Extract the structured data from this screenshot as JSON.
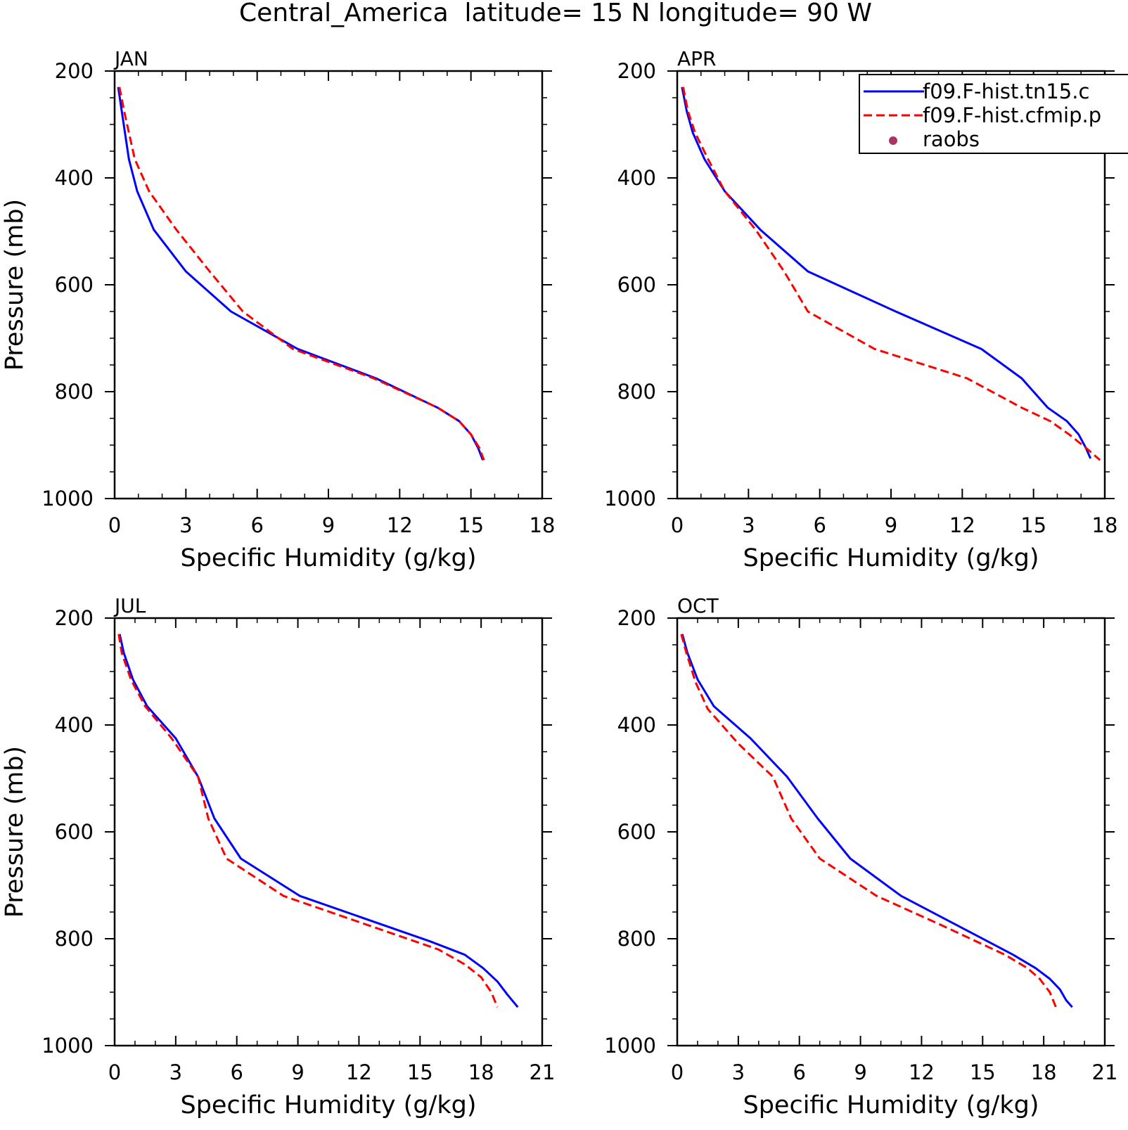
{
  "title": "Central_America  latitude= 15 N longitude= 90 W",
  "colors": {
    "model1": "#0000ff",
    "model2": "#ff0000",
    "raobs": "#aa3366",
    "frame": "#000000"
  },
  "legend": {
    "placement": "top-right of APR panel (clipped at image edge)",
    "entries": [
      {
        "label": "f09.F-hist.tn15.c",
        "style": "solid",
        "color": "#0000ff"
      },
      {
        "label": "f09.F-hist.cfmip.p",
        "style": "dashed",
        "color": "#ff0000"
      },
      {
        "label": "raobs",
        "style": "marker",
        "color": "#aa3366"
      }
    ]
  },
  "chart_data": [
    {
      "type": "line",
      "panel": "JAN",
      "xlabel": "Specific Humidity (g/kg)",
      "ylabel": "Pressure (mb)",
      "xlim": [
        0,
        18
      ],
      "ylim": [
        1000,
        200
      ],
      "y_inverted": true,
      "xticks": [
        "0",
        "3",
        "6",
        "9",
        "12",
        "15",
        "18"
      ],
      "yticks": [
        "200",
        "400",
        "600",
        "800",
        "1000"
      ],
      "series": [
        {
          "name": "f09.F-hist.tn15.c",
          "style": "solid",
          "x": [
            0.15,
            0.3,
            0.6,
            0.95,
            1.65,
            3.0,
            4.9,
            7.7,
            11.0,
            13.6,
            14.5,
            15.0,
            15.3,
            15.5
          ],
          "y": [
            230,
            275,
            365,
            425,
            497,
            575,
            650,
            720,
            775,
            830,
            855,
            880,
            905,
            928
          ]
        },
        {
          "name": "f09.F-hist.cfmip.p",
          "style": "dashed",
          "x": [
            0.2,
            0.4,
            0.85,
            1.45,
            2.6,
            4.0,
            5.4,
            7.5,
            10.9,
            13.6,
            14.5,
            15.0,
            15.35,
            15.55
          ],
          "y": [
            230,
            275,
            365,
            425,
            497,
            575,
            650,
            720,
            775,
            830,
            855,
            880,
            905,
            928
          ]
        }
      ]
    },
    {
      "type": "line",
      "panel": "APR",
      "xlabel": "Specific Humidity (g/kg)",
      "ylabel": "",
      "xlim": [
        0,
        18
      ],
      "ylim": [
        1000,
        200
      ],
      "y_inverted": true,
      "xticks": [
        "0",
        "3",
        "6",
        "9",
        "12",
        "15",
        "18"
      ],
      "yticks": [
        "200",
        "400",
        "600",
        "800",
        "1000"
      ],
      "series": [
        {
          "name": "f09.F-hist.tn15.c",
          "style": "solid",
          "x": [
            0.2,
            0.4,
            0.65,
            1.15,
            2.0,
            3.5,
            5.5,
            9.2,
            12.8,
            14.5,
            15.6,
            16.4,
            16.9,
            17.2,
            17.4
          ],
          "y": [
            230,
            275,
            315,
            365,
            425,
            497,
            575,
            650,
            720,
            775,
            830,
            855,
            880,
            905,
            925
          ]
        },
        {
          "name": "f09.F-hist.cfmip.p",
          "style": "dashed",
          "x": [
            0.25,
            0.45,
            0.75,
            1.3,
            2.0,
            3.3,
            4.5,
            5.5,
            8.3,
            12.2,
            14.5,
            15.7,
            16.5,
            17.2,
            17.8
          ],
          "y": [
            230,
            275,
            315,
            365,
            425,
            497,
            575,
            650,
            720,
            775,
            830,
            855,
            880,
            905,
            928
          ]
        }
      ]
    },
    {
      "type": "line",
      "panel": "JUL",
      "xlabel": "Specific Humidity (g/kg)",
      "ylabel": "Pressure (mb)",
      "xlim": [
        0,
        21
      ],
      "ylim": [
        1000,
        200
      ],
      "y_inverted": true,
      "xticks": [
        "0",
        "3",
        "6",
        "9",
        "12",
        "15",
        "18",
        "21"
      ],
      "yticks": [
        "200",
        "400",
        "600",
        "800",
        "1000"
      ],
      "series": [
        {
          "name": "f09.F-hist.tn15.c",
          "style": "solid",
          "x": [
            0.25,
            0.45,
            0.9,
            1.6,
            3.0,
            4.1,
            4.9,
            6.2,
            9.1,
            15.5,
            17.2,
            18.1,
            18.8,
            19.3,
            19.8
          ],
          "y": [
            230,
            265,
            315,
            365,
            425,
            497,
            575,
            650,
            720,
            805,
            830,
            855,
            880,
            905,
            928
          ]
        },
        {
          "name": "f09.F-hist.cfmip.p",
          "style": "dashed",
          "x": [
            0.2,
            0.35,
            0.8,
            1.5,
            2.8,
            4.1,
            4.6,
            5.5,
            8.3,
            15.9,
            17.2,
            18.0,
            18.5,
            18.8
          ],
          "y": [
            230,
            265,
            315,
            365,
            425,
            497,
            575,
            650,
            720,
            820,
            848,
            872,
            900,
            928
          ]
        }
      ]
    },
    {
      "type": "line",
      "panel": "OCT",
      "xlabel": "Specific Humidity (g/kg)",
      "ylabel": "",
      "xlim": [
        0,
        21
      ],
      "ylim": [
        1000,
        200
      ],
      "y_inverted": true,
      "xticks": [
        "0",
        "3",
        "6",
        "9",
        "12",
        "15",
        "18",
        "21"
      ],
      "yticks": [
        "200",
        "400",
        "600",
        "800",
        "1000"
      ],
      "series": [
        {
          "name": "f09.F-hist.tn15.c",
          "style": "solid",
          "x": [
            0.25,
            0.5,
            1.0,
            1.8,
            3.6,
            5.4,
            6.9,
            8.5,
            11.0,
            13.5,
            16.5,
            17.6,
            18.3,
            18.8,
            19.1,
            19.4
          ],
          "y": [
            230,
            265,
            315,
            365,
            425,
            497,
            575,
            650,
            720,
            770,
            830,
            855,
            875,
            895,
            915,
            928
          ]
        },
        {
          "name": "f09.F-hist.cfmip.p",
          "style": "dashed",
          "x": [
            0.2,
            0.45,
            0.9,
            1.5,
            3.0,
            4.7,
            5.6,
            7.0,
            9.8,
            13.0,
            16.1,
            17.2,
            17.8,
            18.3,
            18.6
          ],
          "y": [
            230,
            265,
            320,
            370,
            435,
            497,
            575,
            650,
            720,
            775,
            830,
            855,
            875,
            900,
            928
          ]
        }
      ]
    }
  ]
}
